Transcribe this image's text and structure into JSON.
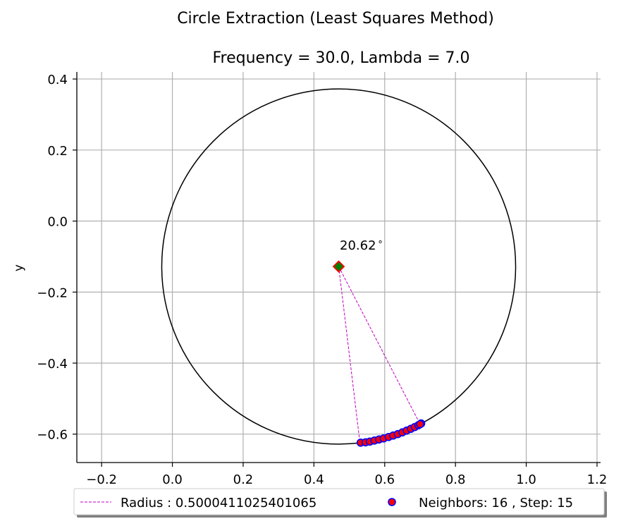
{
  "figure": {
    "suptitle": "Circle Extraction (Least Squares Method)"
  },
  "chart_data": {
    "type": "scatter",
    "title": "Frequency = 30.0, Lambda = 7.0",
    "xlabel": "",
    "ylabel": "y",
    "xlim": [
      -0.27,
      1.21
    ],
    "ylim": [
      -0.68,
      0.42
    ],
    "x_ticks": [
      -0.2,
      0.0,
      0.2,
      0.4,
      0.6,
      0.8,
      1.0,
      1.2
    ],
    "x_tick_labels": [
      "−0.2",
      "0.0",
      "0.2",
      "0.4",
      "0.6",
      "0.8",
      "1.0",
      "1.2"
    ],
    "y_ticks": [
      0.4,
      0.2,
      0.0,
      -0.2,
      -0.4,
      -0.6
    ],
    "y_tick_labels": [
      "0.4",
      "0.2",
      "0.0",
      "−0.2",
      "−0.4",
      "−0.6"
    ],
    "grid": true,
    "circle": {
      "center": [
        0.47,
        -0.128
      ],
      "radius": 0.5000411025401065,
      "color": "#000000"
    },
    "center_marker": {
      "x": 0.47,
      "y": -0.128,
      "edge_color": "#ff0000",
      "face_color": "#008000"
    },
    "radius_lines": [
      {
        "from": [
          0.47,
          -0.128
        ],
        "to": [
          0.53,
          -0.624
        ]
      },
      {
        "from": [
          0.47,
          -0.128
        ],
        "to": [
          0.7,
          -0.572
        ]
      }
    ],
    "angle_annotation": {
      "text": "20.62$^\\circ$",
      "display": "20.62",
      "degree_symbol": "∘",
      "x": 0.47,
      "y": -0.075
    },
    "series": [
      {
        "name": "Neighbors: 16 , Step: 15",
        "marker": "circle",
        "face_color": "#ff0000",
        "edge_color": "#0000ff",
        "points": [
          [
            0.532,
            -0.624
          ],
          [
            0.546,
            -0.623
          ],
          [
            0.558,
            -0.621
          ],
          [
            0.571,
            -0.618
          ],
          [
            0.584,
            -0.615
          ],
          [
            0.597,
            -0.612
          ],
          [
            0.611,
            -0.608
          ],
          [
            0.624,
            -0.604
          ],
          [
            0.637,
            -0.6
          ],
          [
            0.65,
            -0.595
          ],
          [
            0.662,
            -0.59
          ],
          [
            0.674,
            -0.585
          ],
          [
            0.685,
            -0.58
          ],
          [
            0.695,
            -0.575
          ],
          [
            0.703,
            -0.57
          ],
          [
            0.7,
            -0.572
          ]
        ]
      }
    ],
    "legend": {
      "placement": "bottom-center",
      "entries": [
        {
          "label": "Radius : 0.5000411025401065",
          "kind": "dashed-line",
          "color": "#c000c0"
        },
        {
          "label": "Neighbors: 16 , Step: 15",
          "kind": "marker",
          "face_color": "#ff0000",
          "edge_color": "#0000ff"
        }
      ]
    },
    "colors": {
      "radius_line": "#c000c0",
      "grid": "#b0b0b0",
      "axis": "#000000"
    }
  }
}
